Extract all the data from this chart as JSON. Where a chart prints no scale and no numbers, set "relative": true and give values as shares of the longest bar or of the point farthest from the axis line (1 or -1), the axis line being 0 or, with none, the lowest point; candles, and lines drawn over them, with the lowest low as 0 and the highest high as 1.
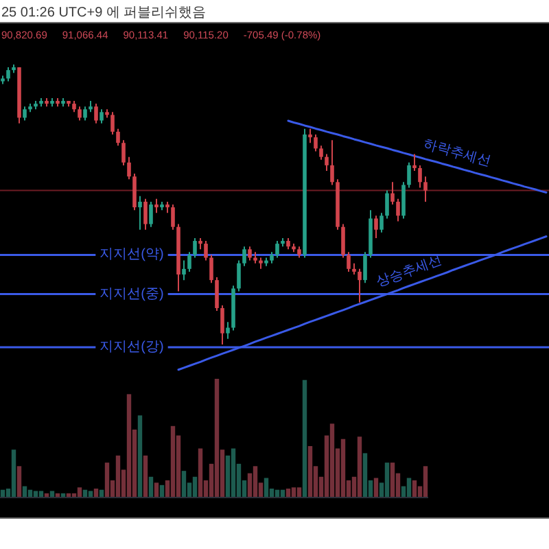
{
  "chart_data": [
    {
      "type": "candlestick",
      "relative": true,
      "annotations": [
        "25 01:26 UTC+9 에 퍼블리쉬했음",
        "90,820.69",
        "91,066.44",
        "90,113.41",
        "90,115.20",
        "-705.49 (-0.78%)"
      ],
      "categories": [
        null,
        null,
        null,
        null,
        null,
        null,
        null,
        null,
        null,
        null,
        null,
        null,
        null,
        null,
        null,
        null,
        null,
        null,
        null,
        null,
        null,
        null,
        null,
        null,
        null,
        null,
        null,
        null,
        null,
        null,
        null,
        null,
        null,
        null,
        null,
        null,
        null,
        null,
        null,
        null,
        null,
        null,
        null,
        null,
        null,
        null,
        null,
        null,
        null,
        null,
        null,
        null,
        null,
        null,
        null,
        null,
        null,
        null,
        null,
        null,
        null,
        null,
        null,
        null,
        null,
        null,
        null,
        null,
        null,
        null,
        null,
        null,
        null,
        null,
        null,
        null,
        null,
        null,
        null,
        null,
        null,
        null,
        null,
        null,
        null,
        null,
        null,
        null,
        null,
        null,
        null,
        null,
        null,
        null,
        null,
        null,
        null,
        null,
        null,
        null
      ],
      "ohlc": [
        [
          0.94,
          0.96,
          0.93,
          0.95
        ],
        [
          0.95,
          0.99,
          0.94,
          0.98
        ],
        [
          0.98,
          1.0,
          0.97,
          0.99
        ],
        [
          0.99,
          0.99,
          0.79,
          0.81
        ],
        [
          0.81,
          0.85,
          0.8,
          0.84
        ],
        [
          0.84,
          0.86,
          0.83,
          0.85
        ],
        [
          0.85,
          0.87,
          0.84,
          0.86
        ],
        [
          0.86,
          0.88,
          0.85,
          0.87
        ],
        [
          0.87,
          0.88,
          0.85,
          0.86
        ],
        [
          0.86,
          0.88,
          0.85,
          0.87
        ],
        [
          0.87,
          0.88,
          0.85,
          0.86
        ],
        [
          0.86,
          0.88,
          0.85,
          0.87
        ],
        [
          0.87,
          0.87,
          0.85,
          0.86
        ],
        [
          0.86,
          0.87,
          0.83,
          0.84
        ],
        [
          0.84,
          0.85,
          0.8,
          0.81
        ],
        [
          0.81,
          0.85,
          0.8,
          0.84
        ],
        [
          0.84,
          0.87,
          0.83,
          0.85
        ],
        [
          0.85,
          0.86,
          0.79,
          0.8
        ],
        [
          0.8,
          0.84,
          0.79,
          0.83
        ],
        [
          0.83,
          0.84,
          0.81,
          0.82
        ],
        [
          0.82,
          0.83,
          0.75,
          0.76
        ],
        [
          0.76,
          0.77,
          0.71,
          0.72
        ],
        [
          0.72,
          0.73,
          0.64,
          0.65
        ],
        [
          0.65,
          0.67,
          0.59,
          0.6
        ],
        [
          0.6,
          0.61,
          0.48,
          0.49
        ],
        [
          0.49,
          0.53,
          0.41,
          0.51
        ],
        [
          0.51,
          0.52,
          0.41,
          0.43
        ],
        [
          0.43,
          0.51,
          0.42,
          0.5
        ],
        [
          0.5,
          0.52,
          0.47,
          0.49
        ],
        [
          0.49,
          0.51,
          0.48,
          0.5
        ],
        [
          0.5,
          0.51,
          0.47,
          0.49
        ],
        [
          0.49,
          0.5,
          0.41,
          0.42
        ],
        [
          0.42,
          0.43,
          0.19,
          0.25
        ],
        [
          0.25,
          0.3,
          0.23,
          0.27
        ],
        [
          0.27,
          0.33,
          0.26,
          0.32
        ],
        [
          0.32,
          0.38,
          0.31,
          0.37
        ],
        [
          0.37,
          0.38,
          0.34,
          0.36
        ],
        [
          0.36,
          0.37,
          0.3,
          0.31
        ],
        [
          0.31,
          0.32,
          0.22,
          0.23
        ],
        [
          0.23,
          0.24,
          0.12,
          0.13
        ],
        [
          0.13,
          0.14,
          0.0,
          0.04
        ],
        [
          0.04,
          0.08,
          0.02,
          0.06
        ],
        [
          0.06,
          0.21,
          0.05,
          0.2
        ],
        [
          0.2,
          0.3,
          0.19,
          0.29
        ],
        [
          0.29,
          0.35,
          0.28,
          0.34
        ],
        [
          0.34,
          0.35,
          0.3,
          0.31
        ],
        [
          0.31,
          0.33,
          0.29,
          0.3
        ],
        [
          0.3,
          0.31,
          0.27,
          0.29
        ],
        [
          0.29,
          0.31,
          0.28,
          0.3
        ],
        [
          0.3,
          0.33,
          0.29,
          0.32
        ],
        [
          0.32,
          0.37,
          0.31,
          0.36
        ],
        [
          0.36,
          0.38,
          0.35,
          0.37
        ],
        [
          0.37,
          0.38,
          0.34,
          0.35
        ],
        [
          0.35,
          0.36,
          0.33,
          0.34
        ],
        [
          0.34,
          0.35,
          0.31,
          0.32
        ],
        [
          0.32,
          0.77,
          0.31,
          0.75
        ],
        [
          0.75,
          0.77,
          0.72,
          0.74
        ],
        [
          0.74,
          0.75,
          0.69,
          0.7
        ],
        [
          0.7,
          0.71,
          0.66,
          0.67
        ],
        [
          0.67,
          0.68,
          0.62,
          0.64
        ],
        [
          0.64,
          0.73,
          0.57,
          0.58
        ],
        [
          0.58,
          0.59,
          0.41,
          0.42
        ],
        [
          0.42,
          0.43,
          0.31,
          0.32
        ],
        [
          0.32,
          0.33,
          0.26,
          0.27
        ],
        [
          0.27,
          0.29,
          0.25,
          0.26
        ],
        [
          0.26,
          0.27,
          0.15,
          0.23
        ],
        [
          0.23,
          0.33,
          0.22,
          0.32
        ],
        [
          0.32,
          0.48,
          0.31,
          0.45
        ],
        [
          0.45,
          0.46,
          0.38,
          0.41
        ],
        [
          0.41,
          0.47,
          0.4,
          0.46
        ],
        [
          0.46,
          0.55,
          0.45,
          0.54
        ],
        [
          0.54,
          0.58,
          0.5,
          0.51
        ],
        [
          0.51,
          0.52,
          0.44,
          0.46
        ],
        [
          0.46,
          0.58,
          0.45,
          0.57
        ],
        [
          0.57,
          0.65,
          0.56,
          0.64
        ],
        [
          0.64,
          0.68,
          0.62,
          0.63
        ],
        [
          0.63,
          0.64,
          0.56,
          0.58
        ],
        [
          0.58,
          0.6,
          0.51,
          0.55
        ],
        null,
        null,
        null,
        null,
        null,
        null,
        null,
        null,
        null,
        null,
        null,
        null,
        null,
        null,
        null,
        null,
        null,
        null,
        null,
        null,
        null,
        null
      ],
      "colors": [
        "#26a189",
        "#26a189",
        "#26a189",
        "#d2444c",
        "#26a189",
        "#26a189",
        "#26a189",
        "#26a189",
        "#d2444c",
        "#26a189",
        "#d2444c",
        "#26a189",
        "#d2444c",
        "#d2444c",
        "#d2444c",
        "#26a189",
        "#26a189",
        "#d2444c",
        "#26a189",
        "#d2444c",
        "#d2444c",
        "#d2444c",
        "#d2444c",
        "#d2444c",
        "#d2444c",
        "#26a189",
        "#d2444c",
        "#26a189",
        "#d2444c",
        "#26a189",
        "#d2444c",
        "#d2444c",
        "#d2444c",
        "#26a189",
        "#26a189",
        "#26a189",
        "#d2444c",
        "#d2444c",
        "#d2444c",
        "#d2444c",
        "#d2444c",
        "#26a189",
        "#26a189",
        "#26a189",
        "#26a189",
        "#d2444c",
        "#d2444c",
        "#d2444c",
        "#26a189",
        "#26a189",
        "#26a189",
        "#26a189",
        "#d2444c",
        "#d2444c",
        "#d2444c",
        "#26a189",
        "#d2444c",
        "#d2444c",
        "#d2444c",
        "#d2444c",
        "#d2444c",
        "#d2444c",
        "#d2444c",
        "#d2444c",
        "#d2444c",
        "#d2444c",
        "#26a189",
        "#26a189",
        "#d2444c",
        "#26a189",
        "#26a189",
        "#d2444c",
        "#d2444c",
        "#26a189",
        "#26a189",
        "#d2444c",
        "#d2444c",
        "#d2444c",
        null,
        null,
        null,
        null,
        null,
        null,
        null,
        null,
        null,
        null,
        null,
        null,
        null,
        null,
        null,
        null,
        null,
        null,
        null,
        null,
        null,
        null
      ],
      "series": [
        {
          "type": "line",
          "name": "하락추세선",
          "color": "#3a5ae8",
          "values": [
            null,
            null,
            null,
            null,
            null,
            null,
            null,
            null,
            null,
            null,
            null,
            null,
            null,
            null,
            null,
            null,
            null,
            null,
            null,
            null,
            null,
            null,
            null,
            null,
            null,
            null,
            null,
            null,
            null,
            null,
            null,
            null,
            null,
            null,
            null,
            null,
            null,
            null,
            null,
            null,
            null,
            null,
            null,
            null,
            null,
            null,
            null,
            null,
            null,
            null,
            null,
            null,
            0.799,
            0.793,
            0.788,
            0.782,
            0.777,
            0.771,
            0.766,
            0.76,
            0.755,
            0.75,
            0.744,
            0.739,
            0.733,
            0.728,
            0.722,
            0.717,
            0.711,
            0.706,
            0.701,
            0.695,
            0.69,
            0.684,
            0.679,
            0.673,
            0.668,
            0.662,
            0.657,
            0.652,
            0.646,
            0.641,
            0.635,
            0.63,
            0.624,
            0.619,
            0.613,
            0.608,
            0.603,
            0.597,
            0.592,
            0.586,
            0.581,
            0.575,
            0.57,
            0.564,
            0.559,
            0.554,
            0.548,
            0.543
          ]
        },
        {
          "type": "line",
          "name": "상승추세선",
          "color": "#3a5ae8",
          "values": [
            null,
            null,
            null,
            null,
            null,
            null,
            null,
            null,
            null,
            null,
            null,
            null,
            null,
            null,
            null,
            null,
            null,
            null,
            null,
            null,
            null,
            null,
            null,
            null,
            null,
            null,
            null,
            null,
            null,
            null,
            null,
            null,
            -0.09,
            -0.083,
            -0.076,
            -0.069,
            -0.062,
            -0.054,
            -0.047,
            -0.04,
            -0.033,
            -0.026,
            -0.019,
            -0.012,
            -0.005,
            0.002,
            0.01,
            0.017,
            0.024,
            0.031,
            0.038,
            0.045,
            0.052,
            0.059,
            0.066,
            0.074,
            0.081,
            0.088,
            0.095,
            0.102,
            0.109,
            0.116,
            0.123,
            0.13,
            0.138,
            0.145,
            0.152,
            0.159,
            0.166,
            0.173,
            0.18,
            0.187,
            0.194,
            0.202,
            0.209,
            0.216,
            0.223,
            0.23,
            0.237,
            0.244,
            0.251,
            0.258,
            0.266,
            0.273,
            0.28,
            0.287,
            0.294,
            0.301,
            0.308,
            0.315,
            0.322,
            0.33,
            0.337,
            0.344,
            0.351,
            0.358,
            0.365,
            0.372,
            0.379,
            0.386
          ]
        }
      ],
      "ref_lines": [
        {
          "axis": "y",
          "value": 0.32,
          "label": "지지선(약)",
          "color": "#3a5ae8"
        },
        {
          "axis": "y",
          "value": 0.18,
          "label": "지지선(중)",
          "color": "#3a5ae8"
        },
        {
          "axis": "y",
          "value": -0.01,
          "label": "지지선(강)",
          "color": "#3a5ae8"
        },
        {
          "axis": "y",
          "value": 0.55,
          "color": "#6e1c24"
        }
      ]
    },
    {
      "type": "bar",
      "relative": true,
      "categories": [
        null,
        null,
        null,
        null,
        null,
        null,
        null,
        null,
        null,
        null,
        null,
        null,
        null,
        null,
        null,
        null,
        null,
        null,
        null,
        null,
        null,
        null,
        null,
        null,
        null,
        null,
        null,
        null,
        null,
        null,
        null,
        null,
        null,
        null,
        null,
        null,
        null,
        null,
        null,
        null,
        null,
        null,
        null,
        null,
        null,
        null,
        null,
        null,
        null,
        null,
        null,
        null,
        null,
        null,
        null,
        null,
        null,
        null,
        null,
        null,
        null,
        null,
        null,
        null,
        null,
        null,
        null,
        null,
        null,
        null,
        null,
        null,
        null,
        null,
        null,
        null,
        null,
        null
      ],
      "values": [
        0.06,
        0.07,
        0.4,
        0.26,
        0.09,
        0.06,
        0.05,
        0.05,
        0.03,
        0.05,
        0.03,
        0.03,
        0.03,
        0.03,
        0.08,
        0.06,
        0.05,
        0.07,
        0.06,
        0.29,
        0.14,
        0.35,
        0.23,
        0.87,
        0.57,
        0.69,
        0.35,
        0.17,
        0.12,
        0.1,
        0.14,
        0.6,
        0.52,
        0.22,
        0.12,
        0.17,
        0.41,
        0.14,
        0.28,
        1.0,
        0.4,
        0.35,
        0.41,
        0.28,
        0.14,
        0.2,
        0.26,
        0.12,
        0.16,
        0.07,
        0.06,
        0.06,
        0.07,
        0.08,
        0.08,
        0.99,
        0.43,
        0.26,
        0.17,
        0.52,
        0.62,
        0.41,
        0.49,
        0.14,
        0.17,
        0.51,
        0.37,
        0.14,
        0.16,
        0.12,
        0.29,
        0.29,
        0.2,
        0.09,
        0.16,
        0.14,
        0.09,
        0.26
      ],
      "colors": [
        "#1d5c50",
        "#1d5c50",
        "#1d5c50",
        "#74303a",
        "#1d5c50",
        "#1d5c50",
        "#1d5c50",
        "#1d5c50",
        "#74303a",
        "#1d5c50",
        "#74303a",
        "#1d5c50",
        "#74303a",
        "#74303a",
        "#74303a",
        "#1d5c50",
        "#1d5c50",
        "#74303a",
        "#1d5c50",
        "#74303a",
        "#74303a",
        "#74303a",
        "#74303a",
        "#74303a",
        "#74303a",
        "#1d5c50",
        "#74303a",
        "#1d5c50",
        "#74303a",
        "#1d5c50",
        "#74303a",
        "#74303a",
        "#74303a",
        "#1d5c50",
        "#1d5c50",
        "#1d5c50",
        "#74303a",
        "#74303a",
        "#74303a",
        "#74303a",
        "#74303a",
        "#1d5c50",
        "#1d5c50",
        "#1d5c50",
        "#1d5c50",
        "#74303a",
        "#74303a",
        "#74303a",
        "#1d5c50",
        "#1d5c50",
        "#1d5c50",
        "#1d5c50",
        "#74303a",
        "#74303a",
        "#74303a",
        "#1d5c50",
        "#74303a",
        "#74303a",
        "#74303a",
        "#74303a",
        "#74303a",
        "#74303a",
        "#74303a",
        "#74303a",
        "#74303a",
        "#74303a",
        "#1d5c50",
        "#1d5c50",
        "#74303a",
        "#1d5c50",
        "#1d5c50",
        "#74303a",
        "#74303a",
        "#1d5c50",
        "#1d5c50",
        "#74303a",
        "#74303a",
        "#74303a"
      ]
    }
  ]
}
